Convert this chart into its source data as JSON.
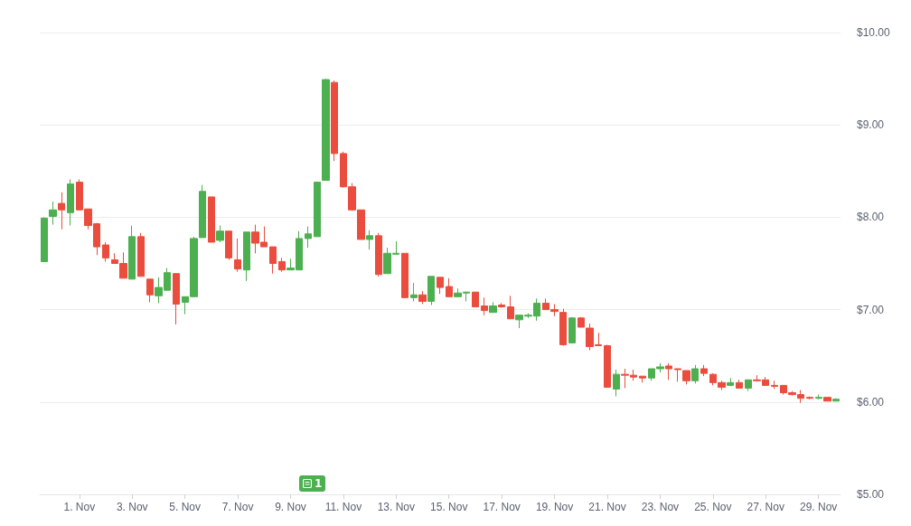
{
  "chart_data": {
    "type": "candlestick",
    "categories": [
      null,
      null,
      null,
      null,
      "1. Nov",
      null,
      null,
      null,
      null,
      null,
      "3. Nov",
      null,
      null,
      null,
      null,
      null,
      "5. Nov",
      null,
      null,
      null,
      null,
      null,
      "7. Nov",
      null,
      null,
      null,
      null,
      null,
      "9. Nov",
      null,
      null,
      null,
      null,
      null,
      "11. Nov",
      null,
      null,
      null,
      null,
      null,
      "13. Nov",
      null,
      null,
      null,
      null,
      null,
      "15. Nov",
      null,
      null,
      null,
      null,
      null,
      "17. Nov",
      null,
      null,
      null,
      null,
      null,
      "19. Nov",
      null,
      null,
      null,
      null,
      null,
      "21. Nov",
      null,
      null,
      null,
      null,
      null,
      "23. Nov",
      null,
      null,
      null,
      null,
      null,
      "25. Nov",
      null,
      null,
      null,
      null,
      null,
      "27. Nov",
      null,
      null,
      null,
      null,
      null,
      "29. Nov",
      null,
      null
    ],
    "ohlc": [
      [
        7.52,
        8.0,
        7.52,
        7.99
      ],
      [
        8.01,
        8.17,
        7.92,
        8.08
      ],
      [
        8.15,
        8.27,
        7.87,
        8.08
      ],
      [
        8.05,
        8.41,
        7.91,
        8.36
      ],
      [
        8.38,
        8.41,
        8.08,
        8.08
      ],
      [
        8.09,
        8.09,
        7.87,
        7.91
      ],
      [
        7.93,
        7.94,
        7.59,
        7.68
      ],
      [
        7.7,
        7.73,
        7.52,
        7.56
      ],
      [
        7.54,
        7.61,
        7.5,
        7.5
      ],
      [
        7.5,
        7.62,
        7.34,
        7.34
      ],
      [
        7.33,
        7.91,
        7.33,
        7.79
      ],
      [
        7.79,
        7.83,
        7.36,
        7.36
      ],
      [
        7.33,
        7.33,
        7.08,
        7.16
      ],
      [
        7.15,
        7.35,
        7.07,
        7.24
      ],
      [
        7.21,
        7.45,
        7.21,
        7.4
      ],
      [
        7.39,
        7.39,
        6.84,
        7.06
      ],
      [
        7.08,
        7.14,
        6.95,
        7.14
      ],
      [
        7.14,
        7.79,
        7.14,
        7.77
      ],
      [
        7.78,
        8.35,
        7.78,
        8.28
      ],
      [
        8.22,
        8.22,
        7.73,
        7.73
      ],
      [
        7.75,
        7.91,
        7.73,
        7.85
      ],
      [
        7.85,
        7.85,
        7.54,
        7.56
      ],
      [
        7.54,
        7.77,
        7.41,
        7.44
      ],
      [
        7.43,
        7.84,
        7.31,
        7.84
      ],
      [
        7.84,
        7.92,
        7.61,
        7.72
      ],
      [
        7.73,
        7.9,
        7.68,
        7.68
      ],
      [
        7.68,
        7.68,
        7.39,
        7.5
      ],
      [
        7.52,
        7.56,
        7.41,
        7.43
      ],
      [
        7.43,
        7.55,
        7.43,
        7.45
      ],
      [
        7.43,
        7.85,
        7.43,
        7.77
      ],
      [
        7.77,
        7.9,
        7.67,
        7.82
      ],
      [
        7.79,
        8.38,
        7.79,
        8.38
      ],
      [
        8.4,
        9.5,
        8.4,
        9.49
      ],
      [
        9.46,
        9.48,
        8.61,
        8.69
      ],
      [
        8.69,
        8.71,
        8.32,
        8.33
      ],
      [
        8.33,
        8.37,
        8.07,
        8.08
      ],
      [
        8.08,
        8.08,
        7.76,
        7.76
      ],
      [
        7.76,
        7.86,
        7.65,
        7.8
      ],
      [
        7.8,
        7.83,
        7.36,
        7.38
      ],
      [
        7.39,
        7.67,
        7.39,
        7.61
      ],
      [
        7.6,
        7.74,
        7.6,
        7.61
      ],
      [
        7.61,
        7.61,
        7.13,
        7.13
      ],
      [
        7.13,
        7.29,
        7.09,
        7.16
      ],
      [
        7.16,
        7.2,
        7.06,
        7.09
      ],
      [
        7.09,
        7.36,
        7.05,
        7.36
      ],
      [
        7.35,
        7.35,
        7.17,
        7.24
      ],
      [
        7.25,
        7.34,
        7.14,
        7.14
      ],
      [
        7.14,
        7.23,
        7.14,
        7.18
      ],
      [
        7.18,
        7.19,
        7.09,
        7.19
      ],
      [
        7.19,
        7.19,
        7.03,
        7.03
      ],
      [
        7.04,
        7.13,
        6.94,
        6.99
      ],
      [
        6.97,
        7.08,
        6.97,
        7.04
      ],
      [
        7.05,
        7.07,
        7.02,
        7.03
      ],
      [
        7.03,
        7.15,
        6.9,
        6.9
      ],
      [
        6.89,
        6.94,
        6.8,
        6.94
      ],
      [
        6.93,
        6.96,
        6.91,
        6.94
      ],
      [
        6.93,
        7.12,
        6.88,
        7.07
      ],
      [
        7.07,
        7.12,
        7.0,
        7.0
      ],
      [
        7.0,
        7.06,
        6.93,
        6.98
      ],
      [
        6.97,
        7.01,
        6.61,
        6.62
      ],
      [
        6.64,
        6.92,
        6.64,
        6.91
      ],
      [
        6.91,
        6.92,
        6.81,
        6.81
      ],
      [
        6.8,
        6.85,
        6.56,
        6.6
      ],
      [
        6.62,
        6.75,
        6.61,
        6.61
      ],
      [
        6.61,
        6.62,
        6.16,
        6.16
      ],
      [
        6.14,
        6.35,
        6.06,
        6.3
      ],
      [
        6.3,
        6.36,
        6.15,
        6.29
      ],
      [
        6.29,
        6.35,
        6.23,
        6.27
      ],
      [
        6.28,
        6.28,
        6.21,
        6.26
      ],
      [
        6.26,
        6.36,
        6.23,
        6.36
      ],
      [
        6.36,
        6.42,
        6.32,
        6.38
      ],
      [
        6.39,
        6.42,
        6.24,
        6.36
      ],
      [
        6.36,
        6.36,
        6.22,
        6.35
      ],
      [
        6.34,
        6.34,
        6.19,
        6.23
      ],
      [
        6.23,
        6.4,
        6.2,
        6.36
      ],
      [
        6.36,
        6.4,
        6.28,
        6.31
      ],
      [
        6.3,
        6.31,
        6.18,
        6.21
      ],
      [
        6.21,
        6.23,
        6.13,
        6.16
      ],
      [
        6.18,
        6.26,
        6.17,
        6.21
      ],
      [
        6.21,
        6.24,
        6.15,
        6.15
      ],
      [
        6.15,
        6.24,
        6.12,
        6.24
      ],
      [
        6.24,
        6.29,
        6.22,
        6.23
      ],
      [
        6.24,
        6.27,
        6.18,
        6.18
      ],
      [
        6.18,
        6.23,
        6.14,
        6.17
      ],
      [
        6.18,
        6.18,
        6.08,
        6.1
      ],
      [
        6.1,
        6.12,
        6.07,
        6.08
      ],
      [
        6.08,
        6.13,
        5.99,
        6.04
      ],
      [
        6.05,
        6.06,
        6.03,
        6.04
      ],
      [
        6.04,
        6.08,
        6.03,
        6.05
      ],
      [
        6.05,
        6.05,
        6.01,
        6.01
      ],
      [
        6.01,
        6.04,
        6.01,
        6.03
      ]
    ],
    "ylim": [
      5,
      10
    ],
    "yticks": [
      {
        "value": 5,
        "label": "$5.00"
      },
      {
        "value": 6,
        "label": "$6.00"
      },
      {
        "value": 7,
        "label": "$7.00"
      },
      {
        "value": 8,
        "label": "$8.00"
      },
      {
        "value": 9,
        "label": "$9.00"
      },
      {
        "value": 10,
        "label": "$10.00"
      }
    ],
    "grid": "y",
    "annotations": [
      "1"
    ]
  }
}
